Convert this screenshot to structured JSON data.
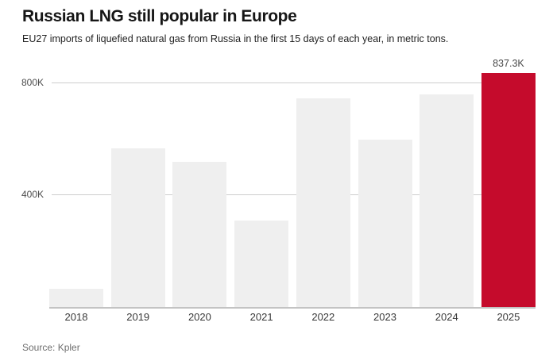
{
  "header": {
    "title": "Russian LNG still popular in Europe",
    "subtitle": "EU27 imports of liquefied natural gas from Russia in the first 15 days of each year, in metric tons."
  },
  "footer": {
    "source": "Source: Kpler"
  },
  "chart_data": {
    "type": "bar",
    "title": "Russian LNG still popular in Europe",
    "subtitle": "EU27 imports of liquefied natural gas from Russia in the first 15 days of each year, in metric tons.",
    "unit": "metric tons",
    "categories": [
      "2018",
      "2019",
      "2020",
      "2021",
      "2022",
      "2023",
      "2024",
      "2025"
    ],
    "values": [
      65000,
      567000,
      519000,
      309000,
      746000,
      599000,
      760000,
      837300
    ],
    "ylim": [
      0,
      880000
    ],
    "yticks": [
      {
        "value": 400000,
        "label": "400K"
      },
      {
        "value": 800000,
        "label": "800K"
      }
    ],
    "grid": "horizontal-only",
    "legend": "none",
    "xlabel": "",
    "ylabel": "",
    "highlight": {
      "index": 7,
      "label": "837.3K"
    },
    "colors": {
      "bar": "#efefef",
      "highlight": "#c50b2c"
    },
    "source": "Source: Kpler"
  }
}
